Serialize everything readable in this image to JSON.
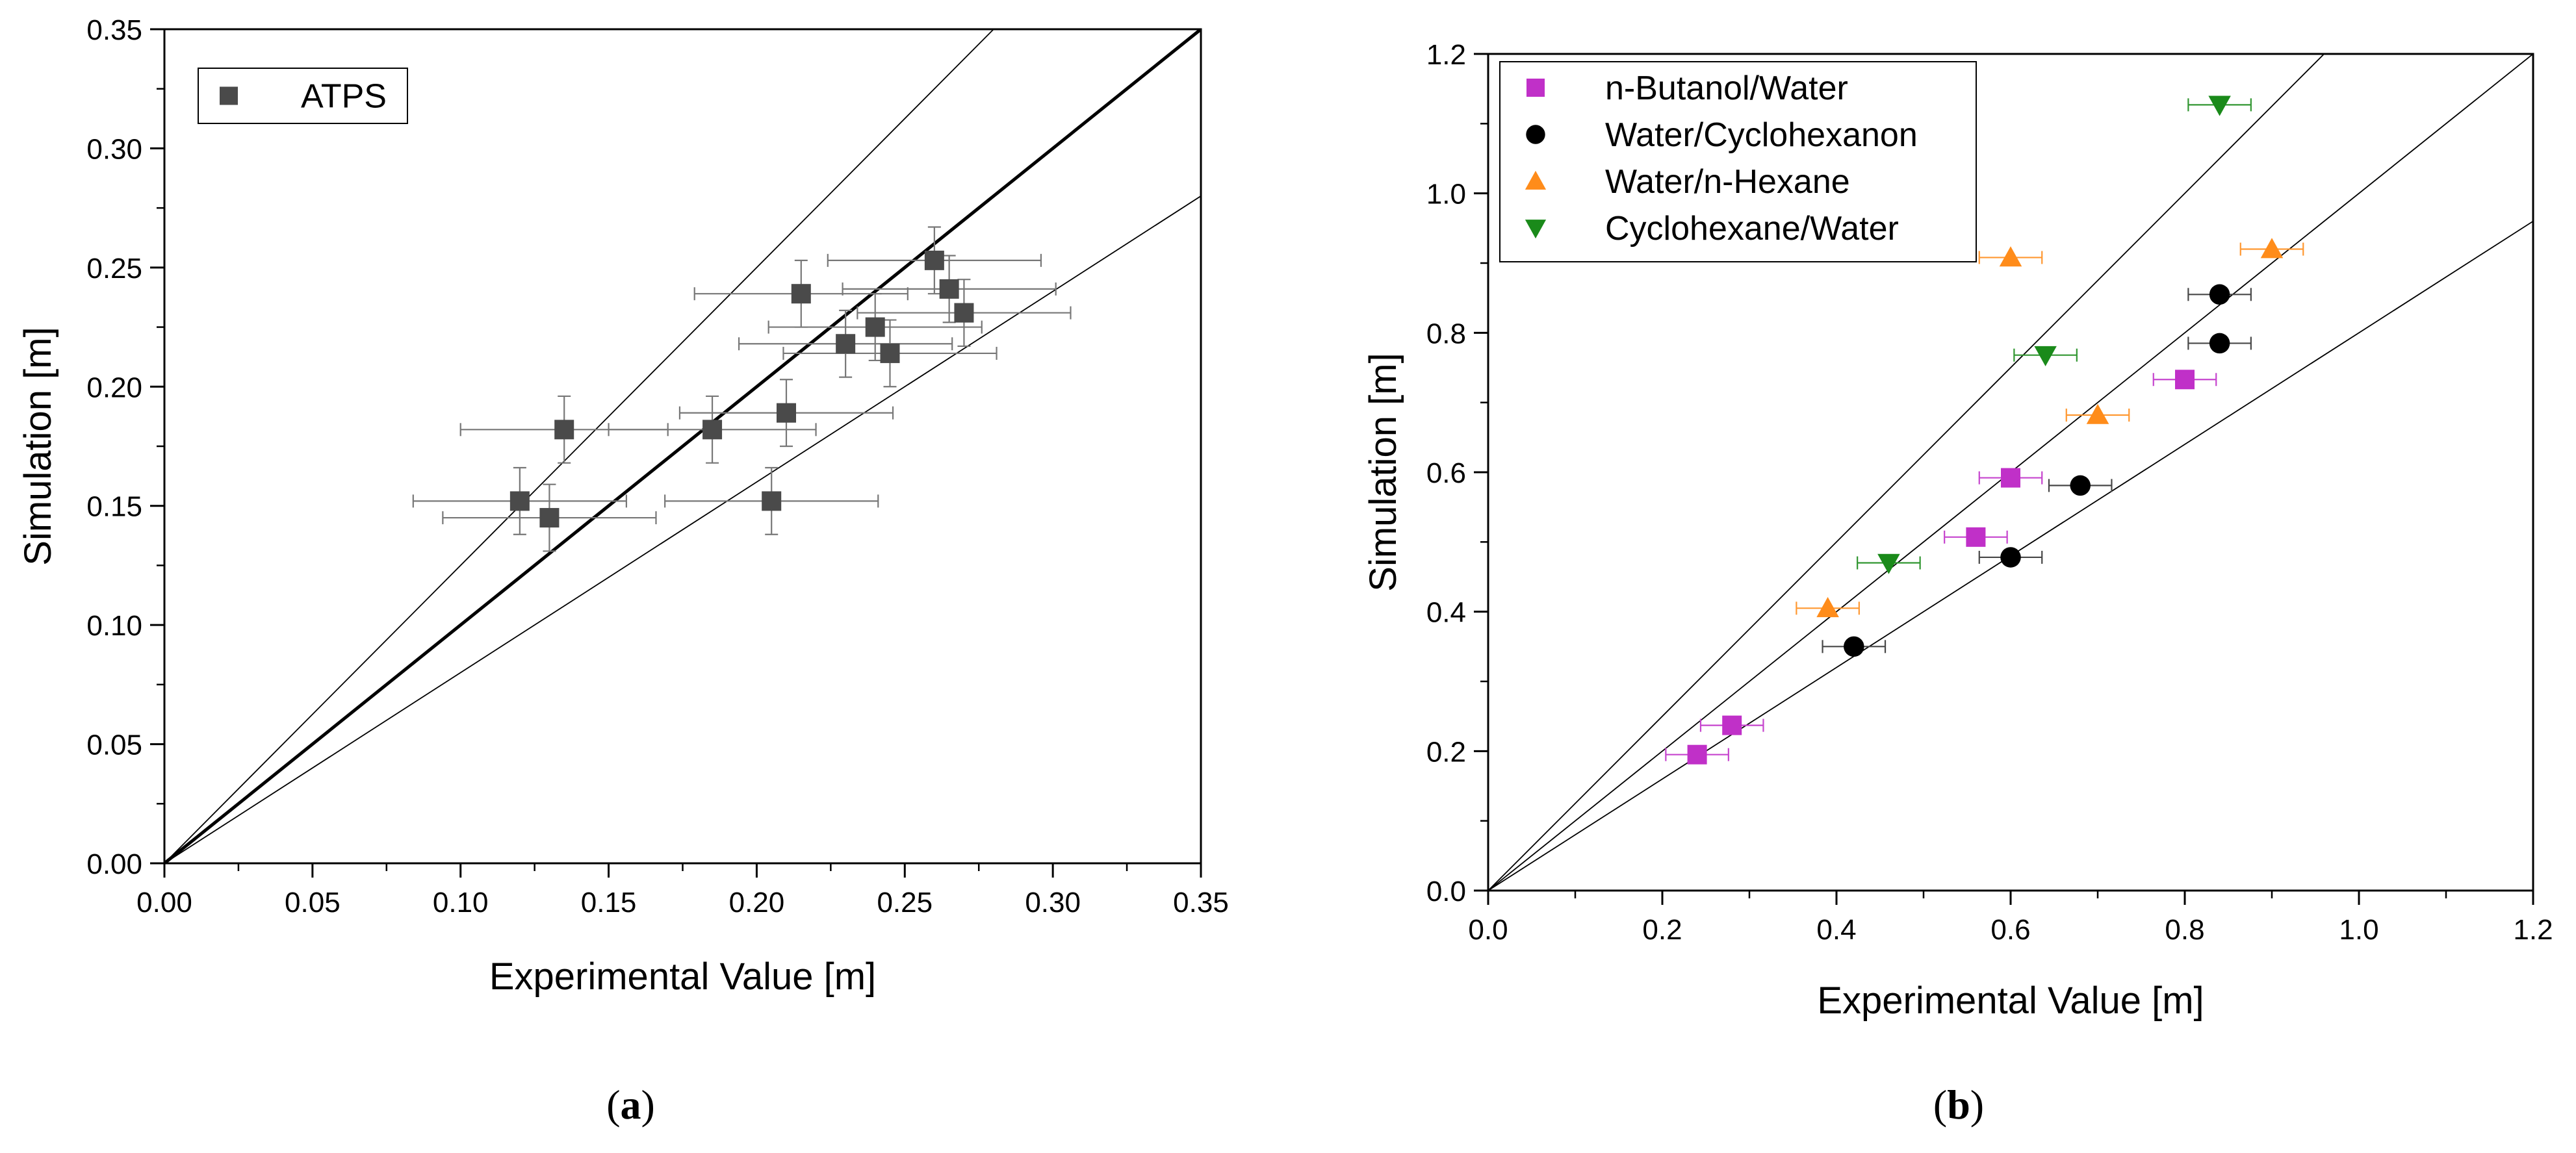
{
  "chart_data": [
    {
      "type": "scatter",
      "panel_label": "a",
      "xlabel": "Experimental Value [m]",
      "ylabel": "Simulation [m]",
      "xlim": [
        0,
        0.35
      ],
      "ylim": [
        0,
        0.35
      ],
      "xticks": [
        "0.00",
        "0.05",
        "0.10",
        "0.15",
        "0.20",
        "0.25",
        "0.30",
        "0.35"
      ],
      "yticks": [
        "0.00",
        "0.05",
        "0.10",
        "0.15",
        "0.20",
        "0.25",
        "0.30",
        "0.35"
      ],
      "legend_position": "top-left",
      "reference_lines": [
        {
          "name": "parity",
          "slope": 1.0,
          "style": "bold"
        },
        {
          "name": "upper-20pct",
          "slope": 1.25,
          "style": "thin"
        },
        {
          "name": "lower-20pct",
          "slope": 0.8,
          "style": "thin"
        }
      ],
      "series": [
        {
          "name": "ATPS",
          "marker": "square",
          "color": "#4a4a4a",
          "points": [
            {
              "x": 0.12,
              "y": 0.152,
              "xerr": 0.036,
              "yerr": 0.014
            },
            {
              "x": 0.13,
              "y": 0.145,
              "xerr": 0.036,
              "yerr": 0.014
            },
            {
              "x": 0.135,
              "y": 0.182,
              "xerr": 0.035,
              "yerr": 0.014
            },
            {
              "x": 0.185,
              "y": 0.182,
              "xerr": 0.035,
              "yerr": 0.014
            },
            {
              "x": 0.205,
              "y": 0.152,
              "xerr": 0.036,
              "yerr": 0.014
            },
            {
              "x": 0.21,
              "y": 0.189,
              "xerr": 0.036,
              "yerr": 0.014
            },
            {
              "x": 0.215,
              "y": 0.239,
              "xerr": 0.036,
              "yerr": 0.014
            },
            {
              "x": 0.23,
              "y": 0.218,
              "xerr": 0.036,
              "yerr": 0.014
            },
            {
              "x": 0.24,
              "y": 0.225,
              "xerr": 0.036,
              "yerr": 0.014
            },
            {
              "x": 0.245,
              "y": 0.214,
              "xerr": 0.036,
              "yerr": 0.014
            },
            {
              "x": 0.26,
              "y": 0.253,
              "xerr": 0.036,
              "yerr": 0.014
            },
            {
              "x": 0.265,
              "y": 0.241,
              "xerr": 0.036,
              "yerr": 0.014
            },
            {
              "x": 0.27,
              "y": 0.231,
              "xerr": 0.036,
              "yerr": 0.014
            }
          ]
        }
      ]
    },
    {
      "type": "scatter",
      "panel_label": "b",
      "xlabel": "Experimental Value [m]",
      "ylabel": "Simulation [m]",
      "xlim": [
        0,
        1.2
      ],
      "ylim": [
        0,
        1.2
      ],
      "xticks": [
        "0.0",
        "0.2",
        "0.4",
        "0.6",
        "0.8",
        "1.0",
        "1.2"
      ],
      "yticks": [
        "0.0",
        "0.2",
        "0.4",
        "0.6",
        "0.8",
        "1.0",
        "1.2"
      ],
      "legend_position": "top-left",
      "reference_lines": [
        {
          "name": "parity",
          "slope": 1.0,
          "style": "thin"
        },
        {
          "name": "upper-line",
          "slope": 1.25,
          "style": "thin"
        },
        {
          "name": "lower-line",
          "slope": 0.8,
          "style": "thin"
        }
      ],
      "series": [
        {
          "name": "n-Butanol/Water",
          "marker": "square",
          "color": "#c030c8",
          "points": [
            {
              "x": 0.24,
              "y": 0.195,
              "xerr": 0.036,
              "yerr": 0.0
            },
            {
              "x": 0.28,
              "y": 0.237,
              "xerr": 0.036,
              "yerr": 0.0
            },
            {
              "x": 0.56,
              "y": 0.507,
              "xerr": 0.036,
              "yerr": 0.0
            },
            {
              "x": 0.6,
              "y": 0.592,
              "xerr": 0.036,
              "yerr": 0.0
            },
            {
              "x": 0.8,
              "y": 0.733,
              "xerr": 0.036,
              "yerr": 0.0
            }
          ]
        },
        {
          "name": "Water/Cyclohexanon",
          "marker": "circle",
          "color": "#000000",
          "points": [
            {
              "x": 0.42,
              "y": 0.35,
              "xerr": 0.036,
              "yerr": 0.0
            },
            {
              "x": 0.6,
              "y": 0.478,
              "xerr": 0.036,
              "yerr": 0.0
            },
            {
              "x": 0.68,
              "y": 0.581,
              "xerr": 0.036,
              "yerr": 0.0
            },
            {
              "x": 0.84,
              "y": 0.785,
              "xerr": 0.036,
              "yerr": 0.0
            },
            {
              "x": 0.84,
              "y": 0.855,
              "xerr": 0.036,
              "yerr": 0.0
            }
          ]
        },
        {
          "name": "Water/n-Hexane",
          "marker": "triangle-up",
          "color": "#ff8c1a",
          "points": [
            {
              "x": 0.39,
              "y": 0.405,
              "xerr": 0.036,
              "yerr": 0.0
            },
            {
              "x": 0.6,
              "y": 0.908,
              "xerr": 0.036,
              "yerr": 0.0
            },
            {
              "x": 0.7,
              "y": 0.682,
              "xerr": 0.036,
              "yerr": 0.0
            },
            {
              "x": 0.9,
              "y": 0.92,
              "xerr": 0.036,
              "yerr": 0.0
            }
          ]
        },
        {
          "name": "Cyclohexane/Water",
          "marker": "triangle-down",
          "color": "#1a8a1a",
          "points": [
            {
              "x": 0.46,
              "y": 0.47,
              "xerr": 0.036,
              "yerr": 0.0
            },
            {
              "x": 0.64,
              "y": 0.768,
              "xerr": 0.036,
              "yerr": 0.0
            },
            {
              "x": 0.84,
              "y": 1.127,
              "xerr": 0.036,
              "yerr": 0.0
            }
          ]
        }
      ]
    }
  ]
}
